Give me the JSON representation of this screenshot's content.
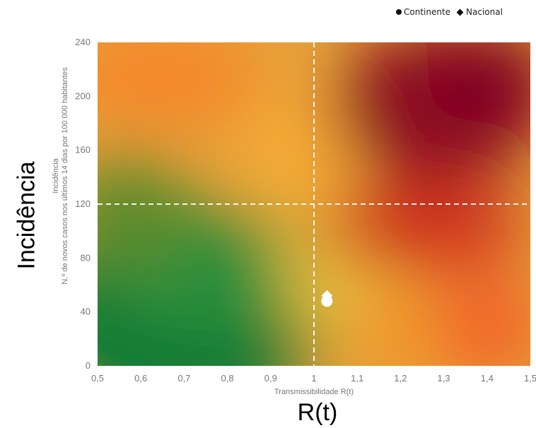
{
  "legend": {
    "continente": "Continente",
    "nacional": "Nacional"
  },
  "big_ylabel": "Incidência",
  "big_xlabel": "R(t)",
  "chart_data": {
    "type": "scatter",
    "xlabel": "Transmissibilidade R(t)",
    "ylabel_line1": "Incidência",
    "ylabel_line2": "N.º de novos casos nos últimos 14 dias por 100 000 habitantes",
    "xlim": [
      0.5,
      1.5
    ],
    "ylim": [
      0,
      240
    ],
    "x_ticks": [
      "0,5",
      "0,6",
      "0,7",
      "0,8",
      "0,9",
      "1",
      "1,1",
      "1,2",
      "1,3",
      "1,4",
      "1,5"
    ],
    "y_ticks": [
      "0",
      "40",
      "80",
      "120",
      "160",
      "200",
      "240"
    ],
    "x_tick_values": [
      0.5,
      0.6,
      0.7,
      0.8,
      0.9,
      1.0,
      1.1,
      1.2,
      1.3,
      1.4,
      1.5
    ],
    "y_tick_values": [
      0,
      40,
      80,
      120,
      160,
      200,
      240
    ],
    "threshold_lines": {
      "x": 1.0,
      "y": 120
    },
    "series": [
      {
        "name": "Continente",
        "marker": "circle",
        "points": [
          {
            "x": 1.03,
            "y": 48
          }
        ]
      },
      {
        "name": "Nacional",
        "marker": "diamond",
        "points": [
          {
            "x": 1.03,
            "y": 52
          }
        ]
      }
    ],
    "background": "gradient risk map: green (low R, low incidence) to red (high R, high incidence)",
    "colors": {
      "green": "#0a7a35",
      "yellow": "#e6be3c",
      "orange": "#f5862a",
      "red": "#c4161c",
      "darkred": "#7f0020",
      "marker": "#ffffff",
      "threshold": "#ffffff"
    }
  }
}
